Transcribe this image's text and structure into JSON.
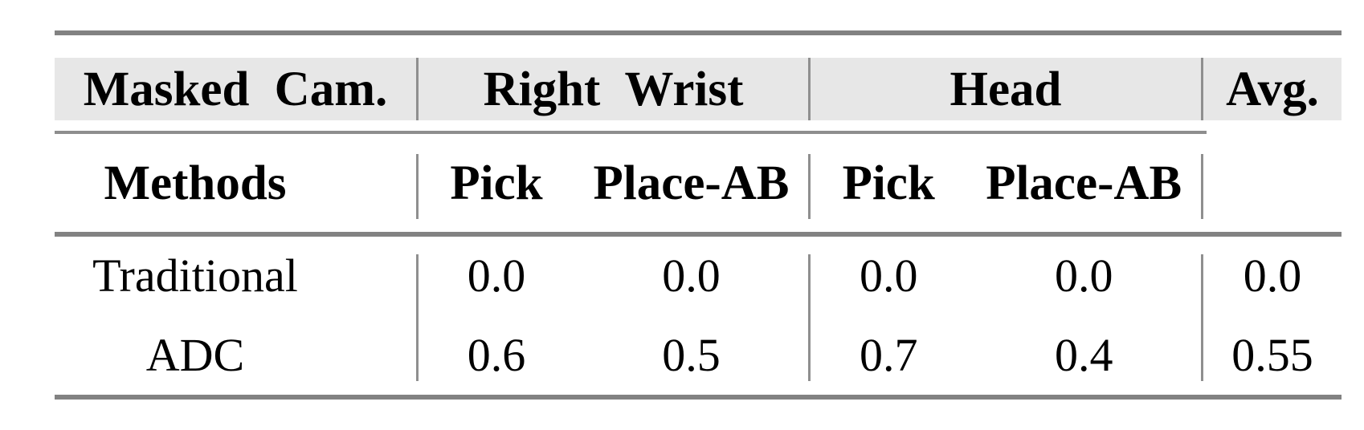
{
  "table": {
    "title_semantic": "masked-camera-ablation-results",
    "header_row1": {
      "col1": "Masked Cam.",
      "group1": "Right Wrist",
      "group2": "Head",
      "avg": "Avg."
    },
    "header_row2": {
      "col1": "Methods",
      "g1_sub1": "Pick",
      "g1_sub2": "Place-AB",
      "g2_sub1": "Pick",
      "g2_sub2": "Place-AB",
      "avg": ""
    },
    "rows": [
      {
        "method": "Traditional",
        "rw_pick": "0.0",
        "rw_place": "0.0",
        "head_pick": "0.0",
        "head_place": "0.0",
        "avg": "0.0"
      },
      {
        "method": "ADC",
        "rw_pick": "0.6",
        "rw_place": "0.5",
        "head_pick": "0.7",
        "head_place": "0.4",
        "avg": "0.55"
      }
    ],
    "colors": {
      "header_band_bg": "#e7e7e7",
      "rule_heavy": "#828282",
      "rule_light": "#8e8e8e",
      "separator": "#8f8f8f",
      "text": "#000000",
      "page_bg": "#ffffff"
    }
  },
  "chart_data": {
    "type": "table",
    "title": "Masked Cam. ablation",
    "column_groups": [
      "Masked Cam.",
      "Right Wrist",
      "Right Wrist",
      "Head",
      "Head",
      "Avg."
    ],
    "columns": [
      "Methods",
      "Pick",
      "Place-AB",
      "Pick",
      "Place-AB",
      "Avg."
    ],
    "rows": [
      [
        "Traditional",
        0.0,
        0.0,
        0.0,
        0.0,
        0.0
      ],
      [
        "ADC",
        0.6,
        0.5,
        0.7,
        0.4,
        0.55
      ]
    ]
  }
}
